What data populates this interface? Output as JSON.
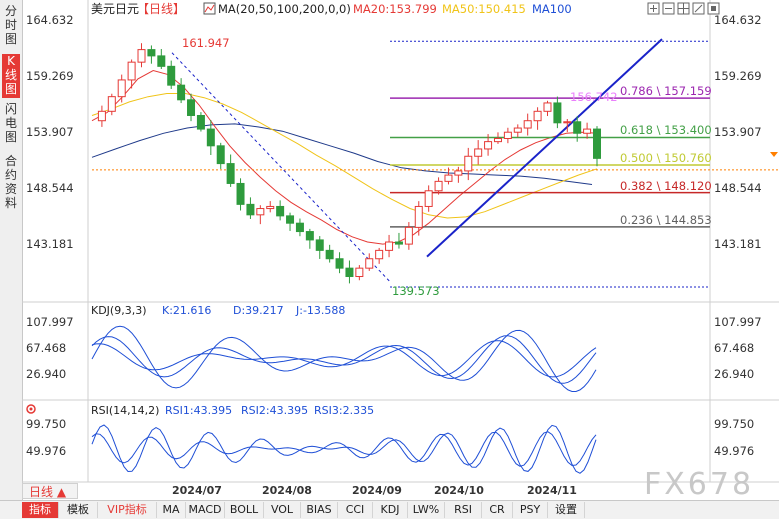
{
  "side_tabs": [
    {
      "label": "分\n时\n图",
      "active": false
    },
    {
      "label": "K\n线\n图",
      "active": true
    },
    {
      "label": "闪\n电\n图",
      "active": false
    },
    {
      "label": "合\n约\n资\n料",
      "active": false
    }
  ],
  "header": {
    "symbol": "美元日元",
    "period": "【日线】",
    "ma_icon": "ma-indicator-icon",
    "ma_params": "MA(20,50,100,200,0,0)",
    "ma20": "MA20:153.799",
    "ma50": "MA50:150.415",
    "ma100": "MA100"
  },
  "toolbar_icons": [
    "zoom-in-icon",
    "zoom-out-icon",
    "grid-icon",
    "expand-icon",
    "fullscreen-icon"
  ],
  "colors": {
    "up": "#e53935",
    "down": "#2e9b3d",
    "ma20": "#e53935",
    "ma50": "#f0c419",
    "ma100": "#1f3a8a",
    "fib_0786": "#9c27b0",
    "fib_0618": "#43a047",
    "fib_0500": "#c0ca33",
    "fib_0382": "#c62828",
    "fib_0236": "#616161",
    "trendline": "#1a23c9",
    "price_line": "#ff7f00"
  },
  "price_axis": [
    "164.632",
    "159.269",
    "153.907",
    "148.544",
    "143.181"
  ],
  "annotations": {
    "high": "161.947",
    "low": "139.573",
    "last": "156.742"
  },
  "fib_labels": [
    {
      "level": "0.786",
      "price": "157.159",
      "text": "0.786 \\ 157.159"
    },
    {
      "level": "0.618",
      "price": "153.400",
      "text": "0.618 \\ 153.400"
    },
    {
      "level": "0.500",
      "price": "150.760",
      "text": "0.500 \\ 150.760"
    },
    {
      "level": "0.382",
      "price": "148.120",
      "text": "0.382 \\ 148.120"
    },
    {
      "level": "0.236",
      "price": "144.853",
      "text": "0.236 \\ 144.853"
    }
  ],
  "kdj": {
    "title": "KDJ(9,3,3)",
    "k": "K:21.616",
    "d": "D:39.217",
    "j": "J:-13.588",
    "axis": [
      "107.997",
      "67.468",
      "26.940"
    ]
  },
  "rsi": {
    "title": "RSI(14,14,2)",
    "rsi1": "RSI1:43.395",
    "rsi2": "RSI2:43.395",
    "rsi3": "RSI3:2.335",
    "axis": [
      "99.750",
      "49.976"
    ]
  },
  "x_axis": [
    "2024/07",
    "2024/08",
    "2024/09",
    "2024/10",
    "2024/11"
  ],
  "period_select": "日线 ▲",
  "watermark": "FX678",
  "bottom_tabs": [
    {
      "label": "指标",
      "active": true,
      "red": false
    },
    {
      "label": "模板",
      "active": false,
      "red": false
    },
    {
      "label": "VIP指标",
      "active": false,
      "red": true
    },
    {
      "label": "MA",
      "active": false,
      "red": false
    },
    {
      "label": "MACD",
      "active": false,
      "red": false
    },
    {
      "label": "BOLL",
      "active": false,
      "red": false
    },
    {
      "label": "VOL",
      "active": false,
      "red": false
    },
    {
      "label": "BIAS",
      "active": false,
      "red": false
    },
    {
      "label": "CCI",
      "active": false,
      "red": false
    },
    {
      "label": "KDJ",
      "active": false,
      "red": false
    },
    {
      "label": "LW%",
      "active": false,
      "red": false
    },
    {
      "label": "RSI",
      "active": false,
      "red": false
    },
    {
      "label": "CR",
      "active": false,
      "red": false
    },
    {
      "label": "PSY",
      "active": false,
      "red": false
    },
    {
      "label": "设置",
      "active": false,
      "red": false
    }
  ],
  "chart_data": {
    "type": "candlestick",
    "title": "美元日元【日线】",
    "x_ticks": [
      "2024/07",
      "2024/08",
      "2024/09",
      "2024/10",
      "2024/11"
    ],
    "y_ticks": [
      164.632,
      159.269,
      153.907,
      148.544,
      143.181
    ],
    "ylim": [
      139.5,
      166.0
    ],
    "close_path": [
      155.0,
      155.9,
      157.3,
      158.9,
      160.6,
      161.8,
      161.2,
      160.2,
      158.4,
      157.0,
      155.5,
      154.2,
      152.6,
      150.9,
      149.0,
      147.0,
      146.0,
      146.6,
      146.8,
      145.9,
      145.2,
      144.4,
      143.6,
      142.6,
      141.8,
      140.9,
      140.1,
      140.9,
      141.8,
      142.6,
      143.4,
      143.2,
      144.8,
      146.8,
      148.3,
      149.2,
      149.8,
      150.2,
      151.6,
      152.3,
      153.0,
      153.3,
      153.9,
      154.3,
      155.0,
      155.9,
      156.7,
      154.8,
      154.9,
      153.8,
      154.2,
      151.4
    ],
    "ma20": [
      155.0,
      155.8,
      157.3,
      159.0,
      159.8,
      159.4,
      158.2,
      156.5,
      154.5,
      152.6,
      151.0,
      149.6,
      148.3,
      147.2,
      146.3,
      145.5,
      144.6,
      143.9,
      143.4,
      143.2,
      143.4,
      144.1,
      145.2,
      146.5,
      147.8,
      149.0,
      150.2,
      151.3,
      152.2,
      152.9,
      153.4,
      153.8,
      153.9,
      153.8
    ],
    "ma50": [
      155.5,
      156.1,
      156.8,
      157.3,
      157.6,
      157.6,
      157.2,
      156.6,
      155.8,
      154.8,
      153.8,
      152.8,
      151.7,
      150.7,
      149.6,
      148.5,
      147.5,
      146.6,
      146.0,
      145.7,
      145.8,
      146.3,
      147.0,
      147.7,
      148.4,
      149.1,
      149.8,
      150.4
    ],
    "ma100": [
      151.5,
      152.3,
      153.1,
      153.8,
      154.3,
      154.6,
      154.7,
      154.4,
      154.0,
      153.3,
      152.6,
      151.9,
      151.1,
      150.5,
      150.2,
      150.0,
      149.9,
      149.8,
      149.7,
      149.5,
      149.2,
      148.9
    ],
    "fibonacci": [
      {
        "level": 0.786,
        "price": 157.159
      },
      {
        "level": 0.618,
        "price": 153.4
      },
      {
        "level": 0.5,
        "price": 150.76
      },
      {
        "level": 0.382,
        "price": 148.12
      },
      {
        "level": 0.236,
        "price": 144.853
      }
    ],
    "swing_high": 161.947,
    "swing_low": 139.573,
    "annotated_price": 156.742,
    "kdj": {
      "K": 21.616,
      "D": 39.217,
      "J": -13.588
    },
    "rsi": {
      "RSI1": 43.395,
      "RSI2": 43.395,
      "RSI3": 2.335
    }
  }
}
